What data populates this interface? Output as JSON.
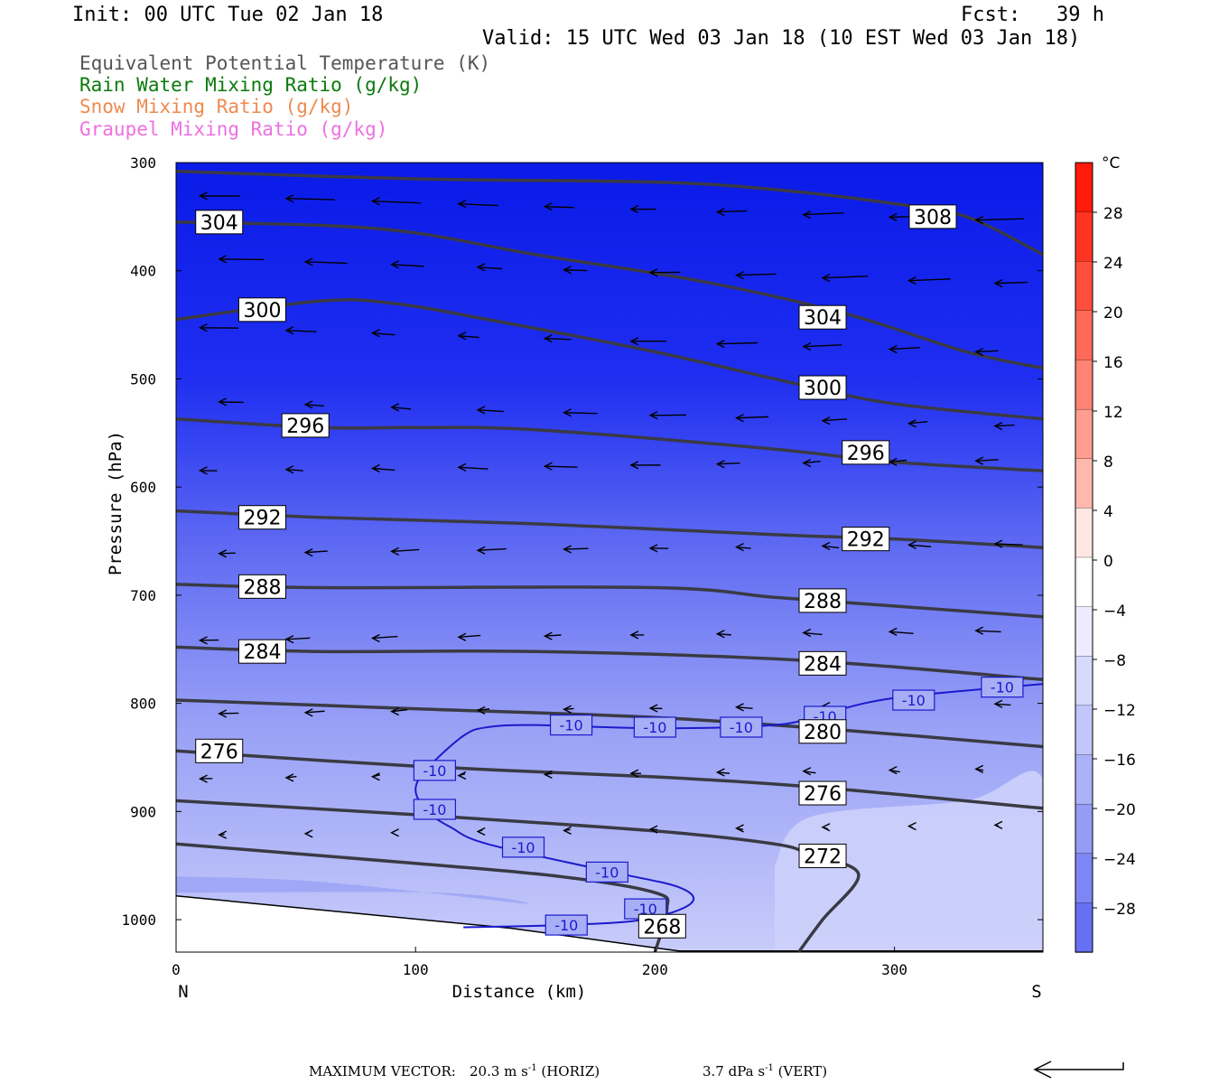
{
  "header": {
    "init": "Init: 00 UTC Tue 02 Jan 18",
    "fcst": "Fcst:   39 h",
    "valid": "Valid: 15 UTC Wed 03 Jan 18 (10 EST Wed 03 Jan 18)"
  },
  "legend": [
    {
      "label": "Equivalent Potential Temperature (K)",
      "color": "#555555"
    },
    {
      "label": "Rain Water Mixing Ratio (g/kg)",
      "color": "#0a7a0a"
    },
    {
      "label": "Snow Mixing Ratio (g/kg)",
      "color": "#ee8a50"
    },
    {
      "label": "Graupel Mixing Ratio (g/kg)",
      "color": "#ee70e0"
    }
  ],
  "footer": {
    "max_vector": "MAXIMUM VECTOR:",
    "horiz_value": "20.3 m s",
    "horiz_tail": " (HORIZ)",
    "vert_value": "3.7 dPa s",
    "vert_tail": " (VERT)",
    "exp": "-1"
  },
  "colorbar": {
    "unit": "°C",
    "labels": [
      "28",
      "24",
      "20",
      "16",
      "12",
      "8",
      "4",
      "0",
      "−4",
      "−8",
      "−12",
      "−16",
      "−20",
      "−24",
      "−28"
    ]
  },
  "chart_data": {
    "type": "cross-section",
    "xlabel": "Distance (km)",
    "ylabel": "Pressure (hPa)",
    "x_ticks": [
      0,
      100,
      200,
      300
    ],
    "y_ticks": [
      300,
      400,
      500,
      600,
      700,
      800,
      900,
      1000
    ],
    "xlim": [
      0,
      362
    ],
    "ylim": [
      1030,
      300
    ],
    "end_labels": {
      "left": "N",
      "right": "S"
    },
    "temperature_fill_range_c": [
      -32,
      32
    ],
    "theta_e_contours": [
      {
        "label": "308",
        "points": [
          [
            0,
            308
          ],
          [
            100,
            315
          ],
          [
            200,
            318
          ],
          [
            250,
            325
          ],
          [
            300,
            338
          ],
          [
            330,
            350
          ],
          [
            362,
            385
          ]
        ],
        "label_at": [
          316,
          350
        ]
      },
      {
        "label": "304",
        "points": [
          [
            0,
            355
          ],
          [
            60,
            358
          ],
          [
            100,
            365
          ],
          [
            150,
            385
          ],
          [
            220,
            410
          ],
          [
            280,
            440
          ],
          [
            330,
            475
          ],
          [
            362,
            490
          ]
        ],
        "label_at": [
          18,
          355
        ]
      },
      {
        "label": "304",
        "points": [
          [
            0,
            355
          ]
        ],
        "label_at": [
          270,
          443
        ]
      },
      {
        "label": "300",
        "points": [
          [
            0,
            445
          ],
          [
            60,
            428
          ],
          [
            90,
            430
          ],
          [
            130,
            445
          ],
          [
            200,
            475
          ],
          [
            260,
            505
          ],
          [
            300,
            523
          ],
          [
            362,
            537
          ]
        ],
        "label_at": [
          36,
          436
        ]
      },
      {
        "label": "300",
        "points": [
          [
            0,
            445
          ]
        ],
        "label_at": [
          270,
          508
        ]
      },
      {
        "label": "296",
        "points": [
          [
            0,
            537
          ],
          [
            60,
            545
          ],
          [
            100,
            545
          ],
          [
            150,
            547
          ],
          [
            250,
            565
          ],
          [
            300,
            577
          ],
          [
            362,
            585
          ]
        ],
        "label_at": [
          54,
          543
        ]
      },
      {
        "label": "296",
        "points": [
          [
            0,
            537
          ]
        ],
        "label_at": [
          288,
          568
        ]
      },
      {
        "label": "292",
        "points": [
          [
            0,
            622
          ],
          [
            60,
            628
          ],
          [
            150,
            634
          ],
          [
            250,
            644
          ],
          [
            300,
            648
          ],
          [
            362,
            656
          ]
        ],
        "label_at": [
          36,
          628
        ]
      },
      {
        "label": "292",
        "points": [
          [
            0,
            622
          ]
        ],
        "label_at": [
          288,
          648
        ]
      },
      {
        "label": "288",
        "points": [
          [
            0,
            690
          ],
          [
            60,
            693
          ],
          [
            200,
            693
          ],
          [
            250,
            702
          ],
          [
            300,
            710
          ],
          [
            362,
            720
          ]
        ],
        "label_at": [
          36,
          692
        ]
      },
      {
        "label": "288",
        "points": [
          [
            0,
            690
          ]
        ],
        "label_at": [
          270,
          705
        ]
      },
      {
        "label": "284",
        "points": [
          [
            0,
            748
          ],
          [
            60,
            752
          ],
          [
            150,
            752
          ],
          [
            260,
            760
          ],
          [
            362,
            778
          ]
        ],
        "label_at": [
          36,
          752
        ]
      },
      {
        "label": "284",
        "points": [
          [
            0,
            748
          ]
        ],
        "label_at": [
          270,
          763
        ]
      },
      {
        "label": "280",
        "points": [
          [
            0,
            797
          ],
          [
            100,
            805
          ],
          [
            200,
            813
          ],
          [
            280,
            825
          ],
          [
            362,
            840
          ]
        ],
        "label_at": [
          270,
          826
        ]
      },
      {
        "label": "276",
        "points": [
          [
            0,
            844
          ],
          [
            100,
            858
          ],
          [
            200,
            868
          ],
          [
            270,
            878
          ],
          [
            362,
            897
          ]
        ],
        "label_at": [
          18,
          844
        ]
      },
      {
        "label": "276",
        "points": [
          [
            0,
            844
          ]
        ],
        "label_at": [
          270,
          883
        ]
      },
      {
        "label": "272",
        "points": [
          [
            0,
            890
          ],
          [
            100,
            903
          ],
          [
            200,
            918
          ],
          [
            250,
            930
          ],
          [
            265,
            940
          ],
          [
            285,
            958
          ],
          [
            270,
            1000
          ],
          [
            260,
            1030
          ]
        ],
        "label_at": [
          270,
          941
        ]
      },
      {
        "label": "268",
        "points": [
          [
            0,
            930
          ],
          [
            100,
            948
          ],
          [
            160,
            960
          ],
          [
            200,
            975
          ],
          [
            205,
            990
          ],
          [
            200,
            1030
          ]
        ],
        "label_at": [
          203,
          1006
        ]
      }
    ],
    "temperature_contour_minus10": {
      "label": "-10",
      "points": [
        [
          362,
          782
        ],
        [
          300,
          795
        ],
        [
          270,
          810
        ],
        [
          250,
          820
        ],
        [
          200,
          823
        ],
        [
          150,
          820
        ],
        [
          130,
          822
        ],
        [
          120,
          830
        ],
        [
          105,
          860
        ],
        [
          100,
          880
        ],
        [
          105,
          900
        ],
        [
          115,
          915
        ],
        [
          130,
          930
        ],
        [
          180,
          955
        ],
        [
          210,
          970
        ],
        [
          215,
          985
        ],
        [
          195,
          1000
        ],
        [
          160,
          1005
        ],
        [
          120,
          1007
        ]
      ],
      "label_at": [
        [
          165,
          820
        ],
        [
          200,
          822
        ],
        [
          236,
          822
        ],
        [
          271,
          812
        ],
        [
          308,
          797
        ],
        [
          345,
          785
        ],
        [
          108,
          862
        ],
        [
          108,
          898
        ],
        [
          145,
          933
        ],
        [
          180,
          956
        ],
        [
          196,
          990
        ],
        [
          163,
          1005
        ]
      ]
    },
    "wind_vectors_note": "horizontal-vertical circulation vectors, predominantly toward N",
    "max_vector": {
      "horizontal_m_s": 20.3,
      "vertical_dPa_s": 3.7
    }
  }
}
